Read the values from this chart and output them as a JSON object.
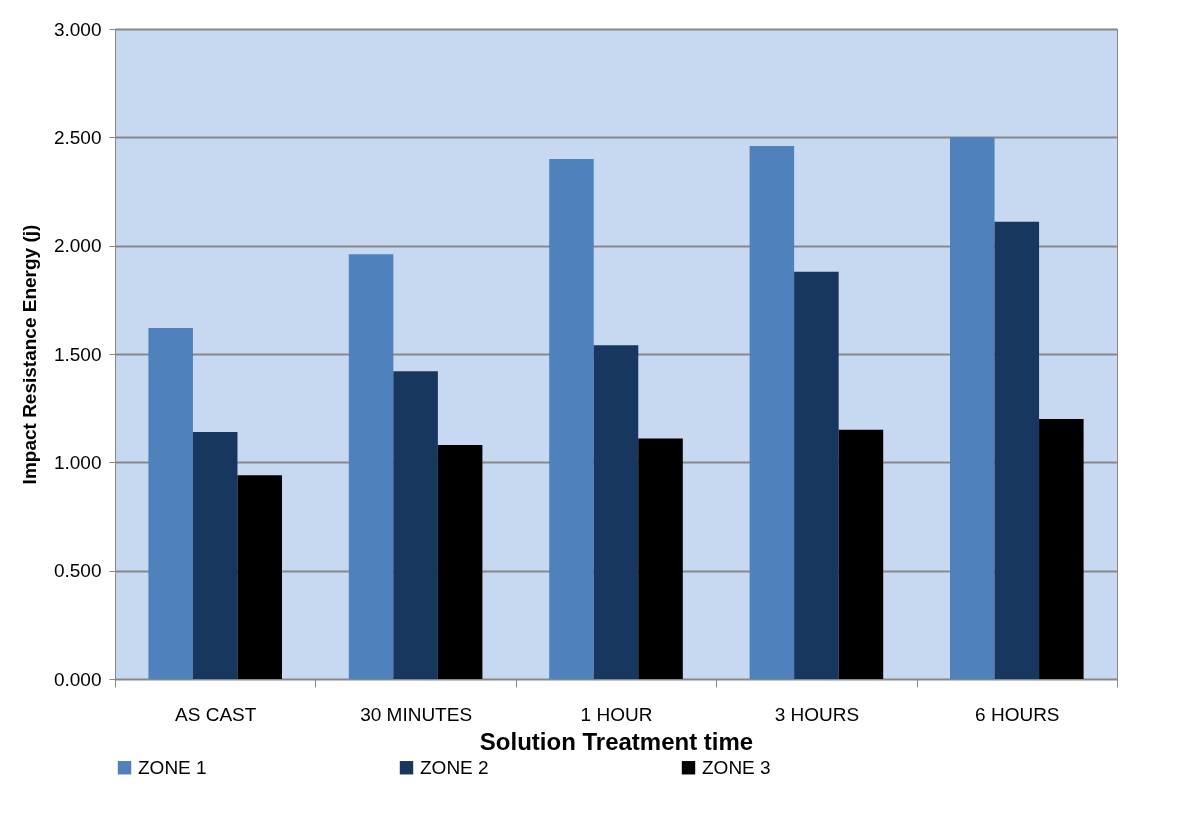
{
  "chart_data": {
    "type": "bar",
    "xlabel": "Solution Treatment time",
    "ylabel": "Impact Resistance Energy  (j)",
    "categories": [
      "AS CAST",
      "30 MINUTES",
      "1 HOUR",
      "3 HOURS",
      "6 HOURS"
    ],
    "series": [
      {
        "name": "ZONE 1",
        "color": "#4f81bd",
        "values": [
          1.62,
          1.96,
          2.4,
          2.46,
          2.5
        ]
      },
      {
        "name": "ZONE 2",
        "color": "#17375e",
        "values": [
          1.14,
          1.42,
          1.54,
          1.88,
          2.11
        ]
      },
      {
        "name": "ZONE 3",
        "color": "#000000",
        "values": [
          0.94,
          1.08,
          1.11,
          1.15,
          1.2
        ]
      }
    ],
    "ylim": [
      0,
      3
    ],
    "yticks": [
      {
        "value": 0,
        "label": "0.000"
      },
      {
        "value": 0.5,
        "label": "0.500"
      },
      {
        "value": 1,
        "label": "1.000"
      },
      {
        "value": 1.5,
        "label": "1.500"
      },
      {
        "value": 2,
        "label": "2.000"
      },
      {
        "value": 2.5,
        "label": "2.500"
      },
      {
        "value": 3,
        "label": "3.000"
      }
    ],
    "grid": "y",
    "legend": "bottom"
  }
}
